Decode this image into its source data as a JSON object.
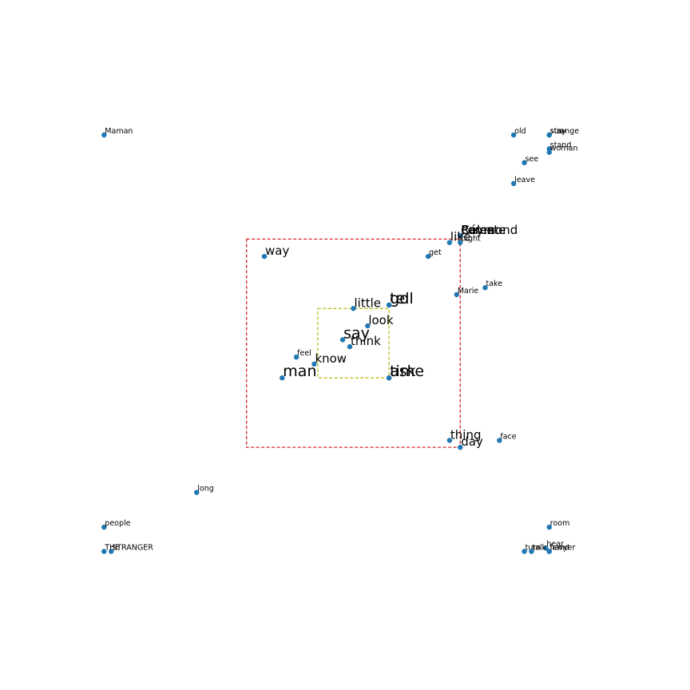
{
  "chart_data": {
    "type": "scatter",
    "title": "",
    "xlabel": "",
    "ylabel": "",
    "grid": false,
    "legend": "none",
    "axes_visible": false,
    "xlim": [
      -7.5,
      7.5
    ],
    "ylim": [
      -7.5,
      7.5
    ],
    "point_color": "#1f77b4",
    "boxes": [
      {
        "name": "outer-box",
        "color": "#d62728",
        "x0": -3,
        "x1": 3,
        "y0": -3,
        "y1": 3
      },
      {
        "name": "inner-box",
        "color": "#bcbd22",
        "x0": -1,
        "x1": 1,
        "y0": -1,
        "y1": 1
      }
    ],
    "points": [
      {
        "label": "Maman",
        "x": -7,
        "y": 6,
        "size": "small"
      },
      {
        "label": "old",
        "x": 4.5,
        "y": 6,
        "size": "small"
      },
      {
        "label": "sun",
        "x": 5.5,
        "y": 6,
        "size": "small"
      },
      {
        "label": "stay",
        "x": 5.5,
        "y": 6,
        "size": "small"
      },
      {
        "label": "strange",
        "x": 5.5,
        "y": 6,
        "size": "small"
      },
      {
        "label": "stand",
        "x": 5.5,
        "y": 5.6,
        "size": "small"
      },
      {
        "label": "woman",
        "x": 5.5,
        "y": 5.5,
        "size": "small"
      },
      {
        "label": "see",
        "x": 4.8,
        "y": 5.2,
        "size": "small"
      },
      {
        "label": "leave",
        "x": 4.5,
        "y": 4.6,
        "size": "small"
      },
      {
        "label": "Raymond",
        "x": 3,
        "y": 3.1,
        "size": "large"
      },
      {
        "label": "Céleste",
        "x": 3,
        "y": 3.1,
        "size": "large"
      },
      {
        "label": "Perez",
        "x": 3,
        "y": 3.1,
        "size": "large"
      },
      {
        "label": "come",
        "x": 3,
        "y": 3.1,
        "size": "large"
      },
      {
        "label": "like",
        "x": 2.7,
        "y": 2.9,
        "size": "large"
      },
      {
        "label": "night",
        "x": 3,
        "y": 2.9,
        "size": "small"
      },
      {
        "label": "way",
        "x": -2.5,
        "y": 2.5,
        "size": "large"
      },
      {
        "label": "get",
        "x": 2.1,
        "y": 2.5,
        "size": "small"
      },
      {
        "label": "take",
        "x": 3.7,
        "y": 1.6,
        "size": "small"
      },
      {
        "label": "Marie",
        "x": 2.9,
        "y": 1.4,
        "size": "small"
      },
      {
        "label": "go",
        "x": 1,
        "y": 1.1,
        "size": "xlarge"
      },
      {
        "label": "tell",
        "x": 1,
        "y": 1.1,
        "size": "xlarge"
      },
      {
        "label": "little",
        "x": 0,
        "y": 1,
        "size": "large"
      },
      {
        "label": "look",
        "x": 0.4,
        "y": 0.5,
        "size": "large"
      },
      {
        "label": "say",
        "x": -0.3,
        "y": 0.1,
        "size": "xlarge"
      },
      {
        "label": "think",
        "x": -0.1,
        "y": -0.1,
        "size": "large"
      },
      {
        "label": "feel",
        "x": -1.6,
        "y": -0.4,
        "size": "small"
      },
      {
        "label": "know",
        "x": -1.1,
        "y": -0.6,
        "size": "large"
      },
      {
        "label": "man",
        "x": -2,
        "y": -1,
        "size": "xlarge"
      },
      {
        "label": "time",
        "x": 1,
        "y": -1,
        "size": "xlarge"
      },
      {
        "label": "ask",
        "x": 1,
        "y": -1,
        "size": "xlarge"
      },
      {
        "label": "thing",
        "x": 2.7,
        "y": -2.8,
        "size": "large"
      },
      {
        "label": "day",
        "x": 3,
        "y": -3,
        "size": "large"
      },
      {
        "label": "face",
        "x": 4.1,
        "y": -2.8,
        "size": "small"
      },
      {
        "label": "long",
        "x": -4.4,
        "y": -4.3,
        "size": "small"
      },
      {
        "label": "people",
        "x": -7,
        "y": -5.3,
        "size": "small"
      },
      {
        "label": "STRANGER",
        "x": -6.8,
        "y": -6,
        "size": "small"
      },
      {
        "label": "THE",
        "x": -7,
        "y": -6,
        "size": "small"
      },
      {
        "label": "room",
        "x": 5.5,
        "y": -5.3,
        "size": "small"
      },
      {
        "label": "hear",
        "x": 5.4,
        "y": -5.9,
        "size": "small"
      },
      {
        "label": "turn",
        "x": 4.8,
        "y": -6,
        "size": "small"
      },
      {
        "label": "talk",
        "x": 5,
        "y": -6,
        "size": "small"
      },
      {
        "label": "lawyer",
        "x": 5.5,
        "y": -6,
        "size": "small"
      },
      {
        "label": "hand",
        "x": 5.5,
        "y": -6,
        "size": "small"
      }
    ]
  }
}
